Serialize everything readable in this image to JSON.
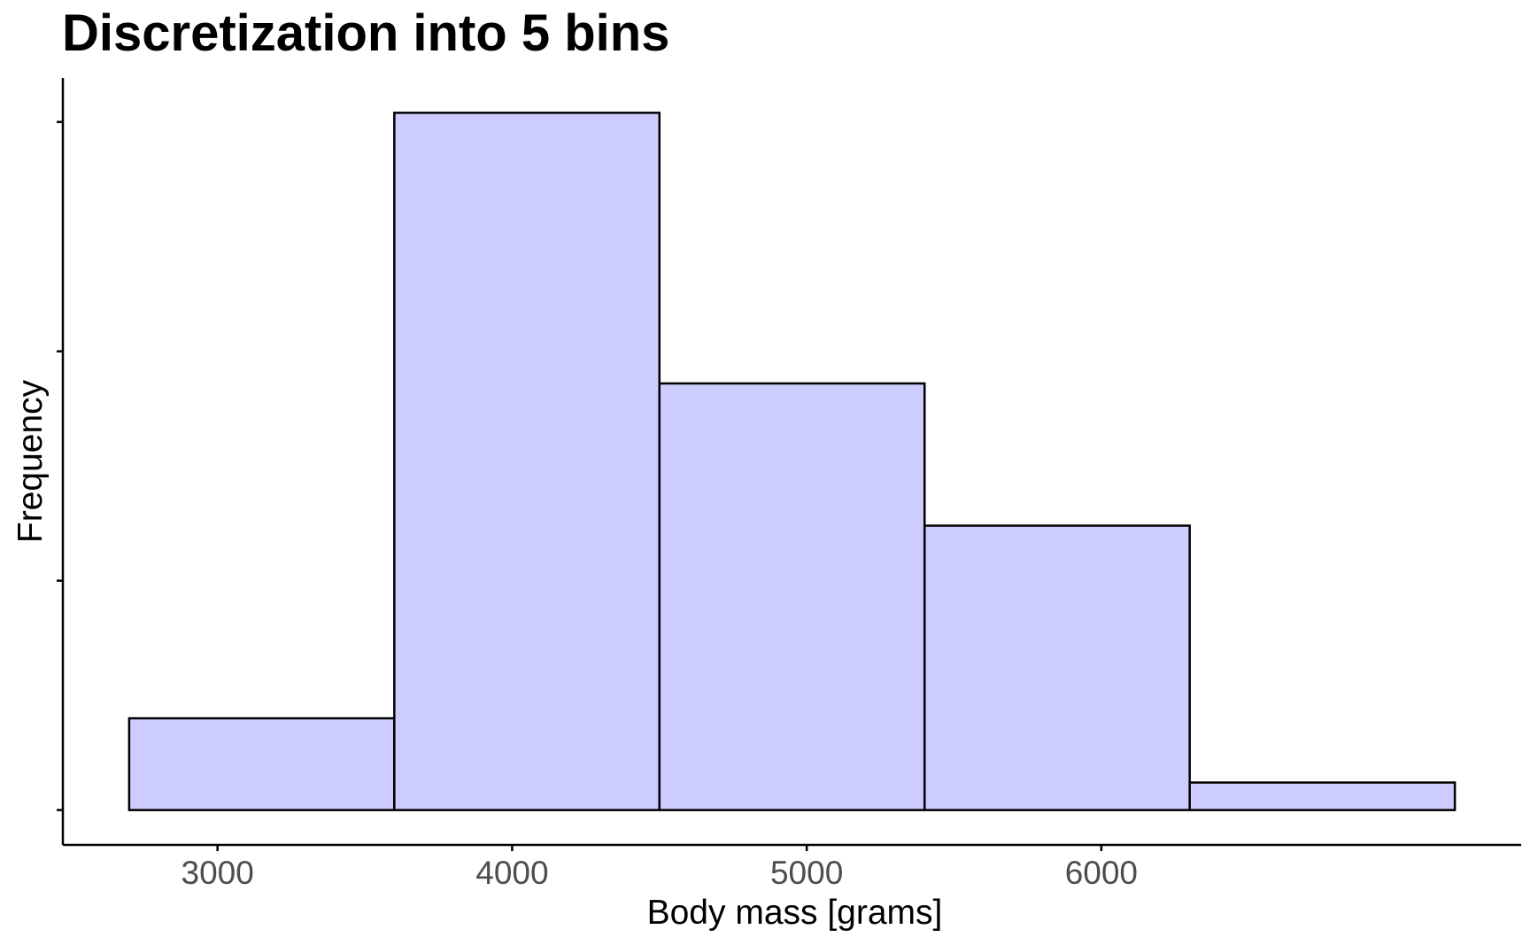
{
  "chart_data": {
    "type": "bar",
    "title": "Discretization into 5 bins",
    "xlabel": "Body mass [grams]",
    "ylabel": "Frequency",
    "bins": [
      {
        "start": 2700,
        "end": 3600,
        "count": 20
      },
      {
        "start": 3600,
        "end": 4500,
        "count": 152
      },
      {
        "start": 4500,
        "end": 5400,
        "count": 93
      },
      {
        "start": 5400,
        "end": 6300,
        "count": 62
      },
      {
        "start": 6300,
        "end": 7200,
        "count": 6
      }
    ],
    "x_ticks": [
      3000,
      4000,
      5000,
      6000
    ],
    "x_tick_labels": [
      "3000",
      "4000",
      "5000",
      "6000"
    ],
    "y_ticks": [
      0,
      50,
      100,
      150
    ],
    "y_tick_labels_shown": false,
    "xlim": [
      2475,
      7425
    ],
    "ylim": [
      -7.6,
      159.6
    ],
    "grid": false,
    "legend": "none",
    "bar_fill": "#ccccff",
    "bar_stroke": "#000000"
  }
}
